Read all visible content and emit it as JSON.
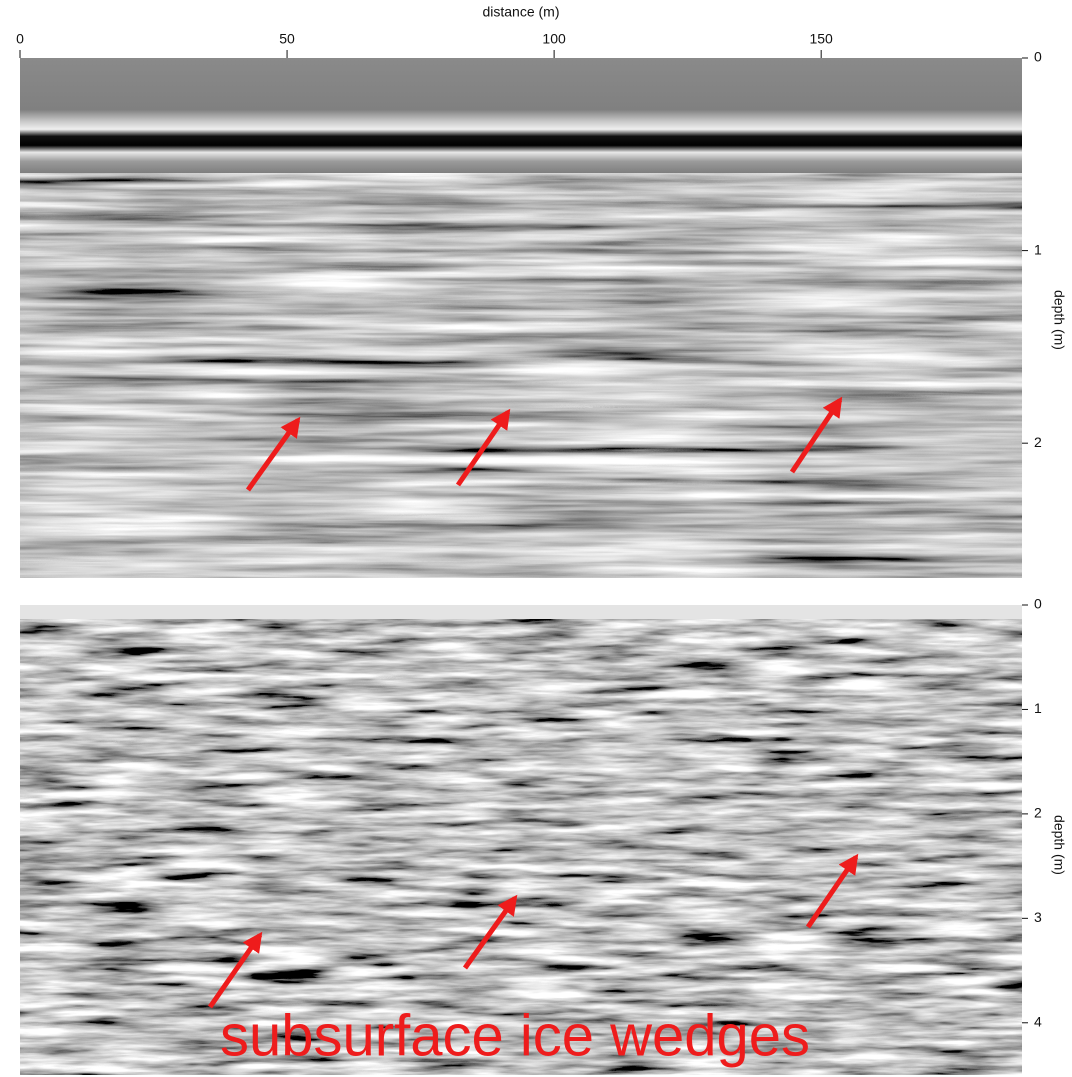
{
  "x_label": "distance (m)",
  "top_panel": {
    "xlim": [
      0,
      187.6
    ],
    "xticks": [
      0,
      50,
      100,
      150
    ],
    "ylim": [
      0,
      2.7
    ],
    "yticks": [
      0,
      1,
      2
    ],
    "y_label": "depth (m)"
  },
  "bottom_panel": {
    "ylim": [
      0,
      4.5
    ],
    "yticks": [
      0,
      1,
      2,
      3,
      4
    ],
    "y_label": "depth (m)"
  },
  "annotation": "subsurface ice wedges"
}
